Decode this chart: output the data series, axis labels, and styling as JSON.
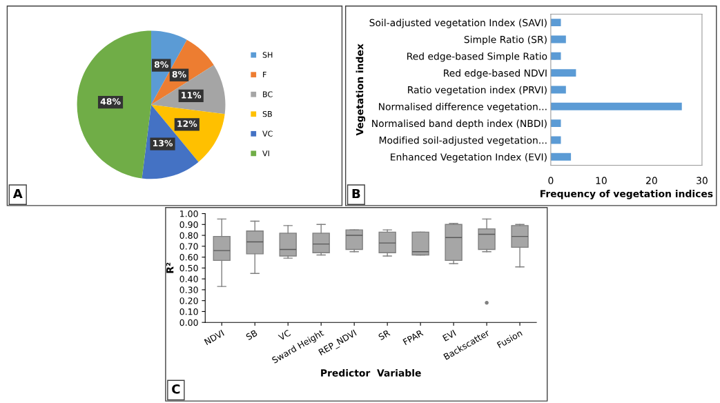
{
  "chart_data": [
    {
      "type": "pie",
      "categories": [
        "SH",
        "F",
        "BC",
        "SB",
        "VC",
        "VI"
      ],
      "values": [
        8,
        8,
        11,
        12,
        13,
        48
      ],
      "colors": [
        "#5b9bd5",
        "#ed7d31",
        "#a5a5a5",
        "#ffc000",
        "#4472c4",
        "#70ad47"
      ],
      "value_labels": [
        "8%",
        "8%",
        "11%",
        "12%",
        "13%",
        "48%"
      ],
      "legend": "right",
      "annotations": [
        "A"
      ]
    },
    {
      "type": "bar",
      "orientation": "horizontal",
      "categories": [
        "Soil-adjusted vegetation Index (SAVI)",
        "Simple Ratio (SR)",
        "Red edge-based Simple Ratio",
        "Red edge-based NDVI",
        "Ratio vegetation index (PRVI)",
        "Normalised difference vegetation...",
        "Normalised band depth index (NBDI)",
        "Modified soil-adjusted vegetation...",
        "Enhanced Vegetation Index (EVI)"
      ],
      "values": [
        2,
        3,
        2,
        5,
        3,
        26,
        2,
        2,
        4
      ],
      "color": "#5b9bd5",
      "xlim": [
        0,
        30
      ],
      "xticks": [
        0,
        10,
        20,
        30
      ],
      "xlabel": "Frequency of vegetation indices",
      "ylabel": "Vegetation index",
      "grid": false,
      "annotations": [
        "B"
      ]
    },
    {
      "type": "box",
      "categories": [
        "NDVI",
        "SB",
        "VC",
        "Sward Height",
        "REP_NDVI",
        "SR",
        "FPAR",
        "EVI",
        "Backscatter",
        "Fusion"
      ],
      "color": "#a6a6a6",
      "boxes": [
        {
          "low": 0.33,
          "q1": 0.57,
          "median": 0.66,
          "q3": 0.79,
          "high": 0.95
        },
        {
          "low": 0.45,
          "q1": 0.63,
          "median": 0.74,
          "q3": 0.84,
          "high": 0.93
        },
        {
          "low": 0.59,
          "q1": 0.61,
          "median": 0.67,
          "q3": 0.82,
          "high": 0.89
        },
        {
          "low": 0.62,
          "q1": 0.64,
          "median": 0.72,
          "q3": 0.82,
          "high": 0.9
        },
        {
          "low": 0.65,
          "q1": 0.67,
          "median": 0.8,
          "q3": 0.85,
          "high": 0.85
        },
        {
          "low": 0.61,
          "q1": 0.64,
          "median": 0.73,
          "q3": 0.83,
          "high": 0.85
        },
        {
          "low": 0.62,
          "q1": 0.62,
          "median": 0.65,
          "q3": 0.83,
          "high": 0.83
        },
        {
          "low": 0.54,
          "q1": 0.57,
          "median": 0.78,
          "q3": 0.9,
          "high": 0.91
        },
        {
          "low": 0.65,
          "q1": 0.67,
          "median": 0.81,
          "q3": 0.86,
          "high": 0.95,
          "outliers": [
            0.18
          ]
        },
        {
          "low": 0.51,
          "q1": 0.69,
          "median": 0.79,
          "q3": 0.89,
          "high": 0.9
        }
      ],
      "ylim": [
        0,
        1
      ],
      "yticks": [
        {
          "value": 0,
          "label": "0.00"
        },
        {
          "value": 0.1,
          "label": "0.10"
        },
        {
          "value": 0.2,
          "label": "0.20"
        },
        {
          "value": 0.3,
          "label": "0.30"
        },
        {
          "value": 0.4,
          "label": "0.40"
        },
        {
          "value": 0.5,
          "label": "0.50"
        },
        {
          "value": 0.6,
          "label": "0.60"
        },
        {
          "value": 0.7,
          "label": "0.70"
        },
        {
          "value": 0.8,
          "label": "0.80"
        },
        {
          "value": 0.9,
          "label": "0.90"
        },
        {
          "value": 1.0,
          "label": "1.00"
        }
      ],
      "xlabel": "Predictor  Variable",
      "ylabel": "R²",
      "grid": false,
      "annotations": [
        "C"
      ]
    }
  ]
}
